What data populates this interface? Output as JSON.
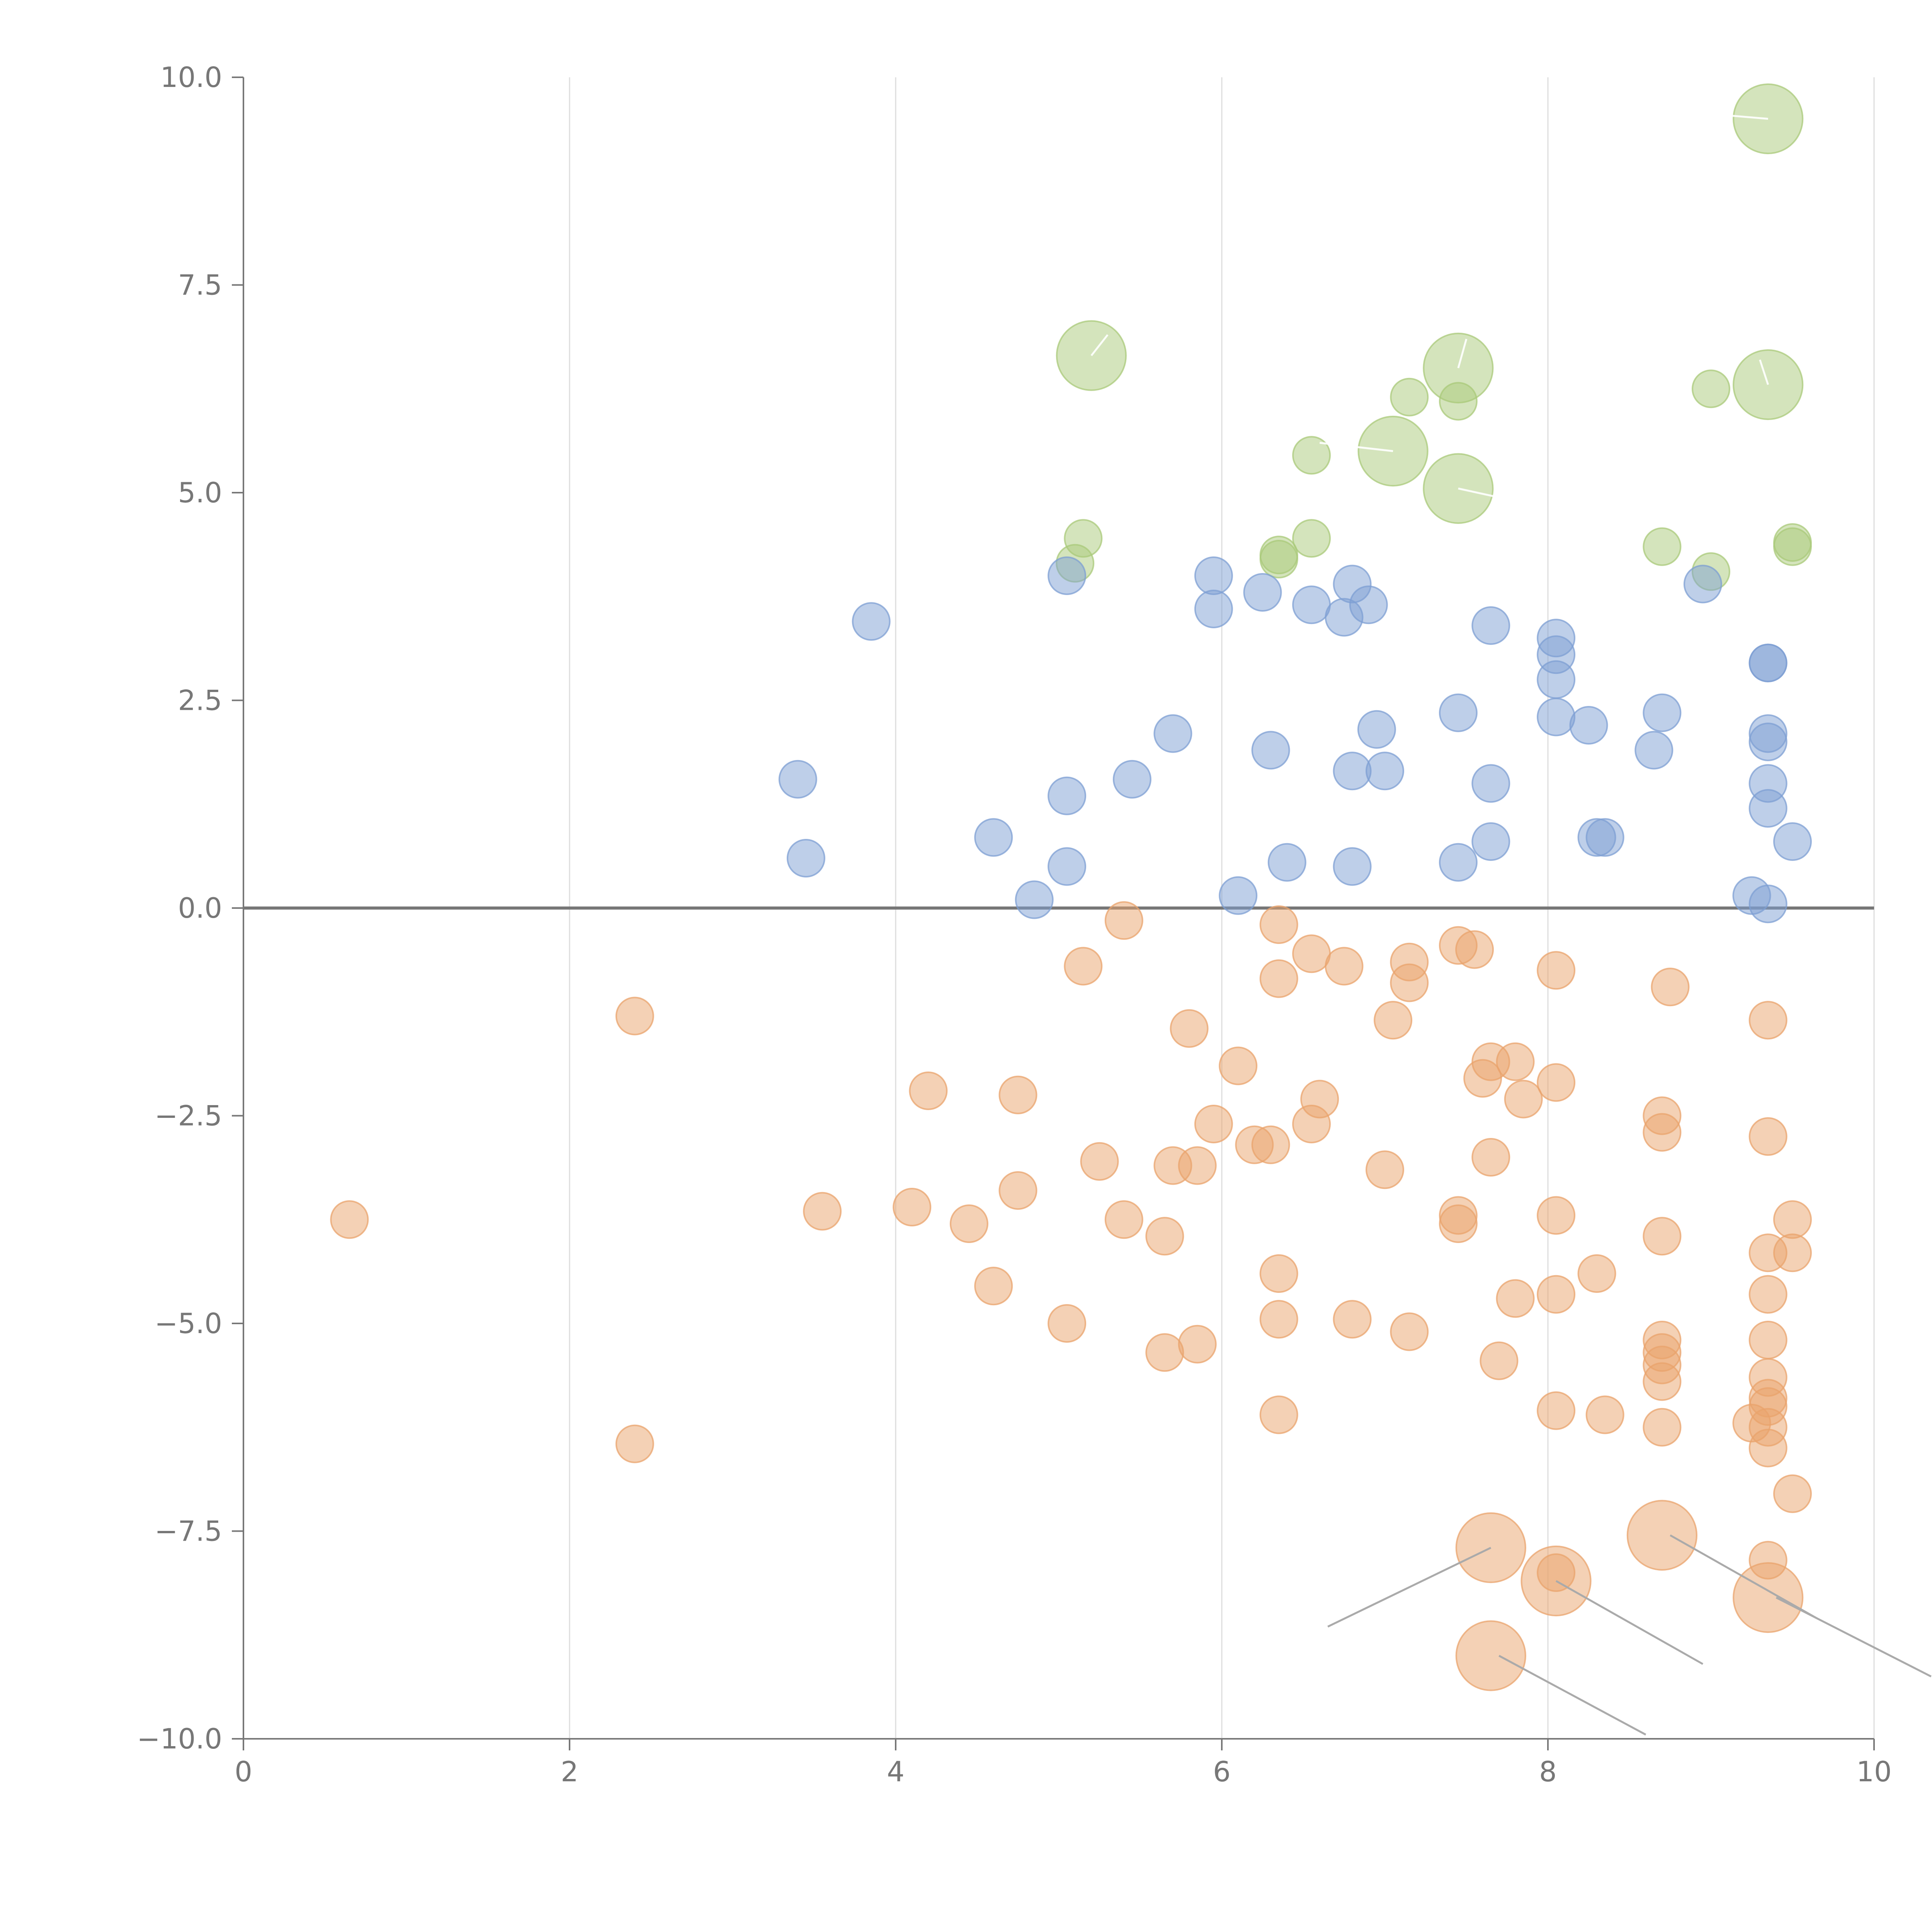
{
  "chart_data": {
    "type": "scatter",
    "title": "",
    "xlabel": "",
    "ylabel": "",
    "xlim": [
      0,
      10
    ],
    "ylim": [
      -10,
      10
    ],
    "x_ticks": [
      0,
      2,
      4,
      6,
      8,
      10
    ],
    "x_tick_labels": [
      "0",
      "2",
      "4",
      "6",
      "8",
      "10"
    ],
    "y_ticks": [
      10,
      7.5,
      5,
      2.5,
      0,
      -2.5,
      -5,
      -7.5,
      -10
    ],
    "y_tick_labels": [
      "10.0",
      "7.5",
      "5.0",
      "2.5",
      "0.0",
      "−2.5",
      "−5.0",
      "−7.5",
      "−10.0"
    ],
    "reference_line_y": 0,
    "vertical_grid": true,
    "legend": "none",
    "series": [
      {
        "name": "green",
        "color": "#a9c97a",
        "points": [
          [
            9.35,
            9.5,
            2.8
          ],
          [
            5.2,
            6.65,
            2.8
          ],
          [
            7.45,
            6.5,
            2.8
          ],
          [
            9.35,
            6.3,
            2.8
          ],
          [
            7.15,
            6.15,
            1.5
          ],
          [
            7.45,
            6.1,
            1.5
          ],
          [
            9.0,
            6.25,
            1.5
          ],
          [
            7.05,
            5.5,
            2.8
          ],
          [
            6.55,
            5.45,
            1.5
          ],
          [
            7.45,
            5.05,
            2.8
          ],
          [
            5.15,
            4.45,
            1.5
          ],
          [
            5.1,
            4.15,
            1.5
          ],
          [
            6.35,
            4.25,
            1.5
          ],
          [
            6.35,
            4.2,
            1.5
          ],
          [
            6.55,
            4.45,
            1.5
          ],
          [
            8.7,
            4.35,
            1.5
          ],
          [
            9.0,
            4.05,
            1.5
          ],
          [
            9.5,
            4.4,
            1.5
          ],
          [
            9.5,
            4.35,
            1.5
          ]
        ]
      },
      {
        "name": "blue",
        "color": "#7d9fd3",
        "points": [
          [
            3.85,
            3.45,
            1.5
          ],
          [
            5.05,
            4.0,
            1.5
          ],
          [
            5.95,
            4.0,
            1.5
          ],
          [
            6.25,
            3.8,
            1.5
          ],
          [
            5.95,
            3.6,
            1.5
          ],
          [
            6.55,
            3.65,
            1.5
          ],
          [
            6.75,
            3.5,
            1.5
          ],
          [
            6.8,
            3.9,
            1.5
          ],
          [
            6.9,
            3.65,
            1.5
          ],
          [
            7.65,
            3.4,
            1.5
          ],
          [
            8.05,
            3.25,
            1.5
          ],
          [
            8.05,
            3.05,
            1.5
          ],
          [
            8.05,
            2.75,
            1.5
          ],
          [
            8.95,
            3.9,
            1.5
          ],
          [
            9.35,
            2.95,
            1.5
          ],
          [
            9.35,
            2.95,
            1.5
          ],
          [
            3.4,
            1.55,
            1.5
          ],
          [
            3.45,
            0.6,
            1.5
          ],
          [
            4.6,
            0.85,
            1.5
          ],
          [
            4.85,
            0.1,
            1.5
          ],
          [
            5.05,
            1.35,
            1.5
          ],
          [
            5.05,
            0.5,
            1.5
          ],
          [
            5.45,
            1.55,
            1.5
          ],
          [
            5.7,
            2.1,
            1.5
          ],
          [
            6.1,
            0.15,
            1.5
          ],
          [
            6.3,
            1.9,
            1.5
          ],
          [
            6.4,
            0.55,
            1.5
          ],
          [
            6.8,
            1.65,
            1.5
          ],
          [
            6.8,
            0.5,
            1.5
          ],
          [
            6.95,
            2.15,
            1.5
          ],
          [
            7.0,
            1.65,
            1.5
          ],
          [
            7.45,
            2.35,
            1.5
          ],
          [
            7.45,
            0.55,
            1.5
          ],
          [
            7.65,
            1.5,
            1.5
          ],
          [
            7.65,
            0.8,
            1.5
          ],
          [
            8.05,
            2.3,
            1.5
          ],
          [
            8.25,
            2.2,
            1.5
          ],
          [
            8.3,
            0.85,
            1.5
          ],
          [
            8.35,
            0.85,
            1.5
          ],
          [
            8.65,
            1.9,
            1.5
          ],
          [
            8.7,
            2.35,
            1.5
          ],
          [
            9.35,
            2.1,
            1.5
          ],
          [
            9.35,
            2.0,
            1.5
          ],
          [
            9.35,
            1.5,
            1.5
          ],
          [
            9.35,
            1.2,
            1.5
          ],
          [
            9.5,
            0.8,
            1.5
          ],
          [
            9.25,
            0.15,
            1.5
          ],
          [
            9.35,
            0.05,
            1.5
          ]
        ]
      },
      {
        "name": "orange",
        "color": "#e9a36c",
        "points": [
          [
            0.65,
            -3.75,
            1.5
          ],
          [
            2.4,
            -1.3,
            1.5
          ],
          [
            2.4,
            -6.45,
            1.5
          ],
          [
            3.55,
            -3.65,
            1.5
          ],
          [
            4.1,
            -3.6,
            1.5
          ],
          [
            4.2,
            -2.2,
            1.5
          ],
          [
            4.45,
            -3.8,
            1.5
          ],
          [
            4.6,
            -4.55,
            1.5
          ],
          [
            4.75,
            -2.25,
            1.5
          ],
          [
            4.75,
            -3.4,
            1.5
          ],
          [
            5.05,
            -5.0,
            1.5
          ],
          [
            5.15,
            -0.7,
            1.5
          ],
          [
            5.25,
            -3.05,
            1.5
          ],
          [
            5.4,
            -0.15,
            1.5
          ],
          [
            5.4,
            -3.75,
            1.5
          ],
          [
            5.65,
            -3.95,
            1.5
          ],
          [
            5.65,
            -5.35,
            1.5
          ],
          [
            5.7,
            -3.1,
            1.5
          ],
          [
            5.8,
            -1.45,
            1.5
          ],
          [
            5.85,
            -3.1,
            1.5
          ],
          [
            5.85,
            -5.25,
            1.5
          ],
          [
            5.95,
            -2.6,
            1.5
          ],
          [
            6.1,
            -1.9,
            1.5
          ],
          [
            6.2,
            -2.85,
            1.5
          ],
          [
            6.3,
            -2.85,
            1.5
          ],
          [
            6.35,
            -0.2,
            1.5
          ],
          [
            6.35,
            -0.85,
            1.5
          ],
          [
            6.35,
            -4.4,
            1.5
          ],
          [
            6.35,
            -4.95,
            1.5
          ],
          [
            6.35,
            -6.1,
            1.5
          ],
          [
            6.55,
            -0.55,
            1.5
          ],
          [
            6.55,
            -2.6,
            1.5
          ],
          [
            6.6,
            -2.3,
            1.5
          ],
          [
            6.75,
            -0.7,
            1.5
          ],
          [
            6.8,
            -4.95,
            1.5
          ],
          [
            7.0,
            -3.15,
            1.5
          ],
          [
            7.05,
            -1.35,
            1.5
          ],
          [
            7.15,
            -0.65,
            1.5
          ],
          [
            7.15,
            -0.9,
            1.5
          ],
          [
            7.15,
            -5.1,
            1.5
          ],
          [
            7.45,
            -0.45,
            1.5
          ],
          [
            7.45,
            -3.7,
            1.5
          ],
          [
            7.45,
            -3.8,
            1.5
          ],
          [
            7.55,
            -0.5,
            1.5
          ],
          [
            7.6,
            -2.05,
            1.5
          ],
          [
            7.65,
            -1.85,
            1.5
          ],
          [
            7.65,
            -3.0,
            1.5
          ],
          [
            7.7,
            -5.45,
            1.5
          ],
          [
            7.8,
            -1.85,
            1.5
          ],
          [
            7.8,
            -4.7,
            1.5
          ],
          [
            7.85,
            -2.3,
            1.5
          ],
          [
            8.05,
            -0.75,
            1.5
          ],
          [
            8.05,
            -2.1,
            1.5
          ],
          [
            8.05,
            -3.7,
            1.5
          ],
          [
            8.05,
            -4.65,
            1.5
          ],
          [
            8.05,
            -6.05,
            1.5
          ],
          [
            8.05,
            -8.0,
            1.5
          ],
          [
            8.3,
            -4.4,
            1.5
          ],
          [
            8.35,
            -6.1,
            1.5
          ],
          [
            8.75,
            -0.95,
            1.5
          ],
          [
            8.7,
            -2.5,
            1.5
          ],
          [
            8.7,
            -2.7,
            1.5
          ],
          [
            8.7,
            -3.95,
            1.5
          ],
          [
            8.7,
            -5.2,
            1.5
          ],
          [
            8.7,
            -5.35,
            1.5
          ],
          [
            8.7,
            -5.5,
            1.5
          ],
          [
            8.7,
            -5.7,
            1.5
          ],
          [
            8.7,
            -6.25,
            1.5
          ],
          [
            9.35,
            -1.35,
            1.5
          ],
          [
            9.35,
            -2.75,
            1.5
          ],
          [
            9.35,
            -4.15,
            1.5
          ],
          [
            9.35,
            -4.65,
            1.5
          ],
          [
            9.35,
            -5.2,
            1.5
          ],
          [
            9.35,
            -5.65,
            1.5
          ],
          [
            9.35,
            -5.9,
            1.5
          ],
          [
            9.35,
            -6.0,
            1.5
          ],
          [
            9.35,
            -6.25,
            1.5
          ],
          [
            9.35,
            -6.5,
            1.5
          ],
          [
            9.35,
            -7.85,
            1.5
          ],
          [
            9.25,
            -6.2,
            1.5
          ],
          [
            9.5,
            -3.75,
            1.5
          ],
          [
            9.5,
            -4.15,
            1.5
          ],
          [
            9.5,
            -7.05,
            1.5
          ],
          [
            7.65,
            -7.7,
            2.8
          ],
          [
            7.65,
            -9.0,
            2.8
          ],
          [
            8.05,
            -8.1,
            2.8
          ],
          [
            8.7,
            -7.55,
            2.8
          ],
          [
            9.35,
            -8.3,
            2.8
          ]
        ]
      }
    ],
    "point_format": "[x, y, size]",
    "callout_leaders": [
      {
        "from": [
          7.65,
          -7.7
        ],
        "to": [
          6.65,
          -8.65
        ]
      },
      {
        "from": [
          8.05,
          -8.1
        ],
        "to": [
          8.95,
          -9.1
        ]
      },
      {
        "from": [
          8.75,
          -7.55
        ],
        "to": [
          9.65,
          -8.55
        ]
      },
      {
        "from": [
          9.4,
          -8.3
        ],
        "to": [
          10.35,
          -9.25
        ]
      },
      {
        "from": [
          7.7,
          -9.0
        ],
        "to": [
          8.6,
          -9.95
        ]
      }
    ],
    "pin_marks": [
      {
        "from": [
          5.2,
          6.65
        ],
        "to": [
          5.3,
          6.9
        ]
      },
      {
        "from": [
          7.45,
          6.5
        ],
        "to": [
          7.5,
          6.85
        ]
      },
      {
        "from": [
          9.35,
          6.3
        ],
        "to": [
          9.3,
          6.6
        ]
      },
      {
        "from": [
          9.35,
          9.5
        ],
        "to": [
          9.05,
          9.55
        ]
      },
      {
        "from": [
          7.05,
          5.5
        ],
        "to": [
          6.6,
          5.6
        ]
      },
      {
        "from": [
          7.45,
          5.05
        ],
        "to": [
          7.8,
          4.9
        ]
      }
    ]
  }
}
